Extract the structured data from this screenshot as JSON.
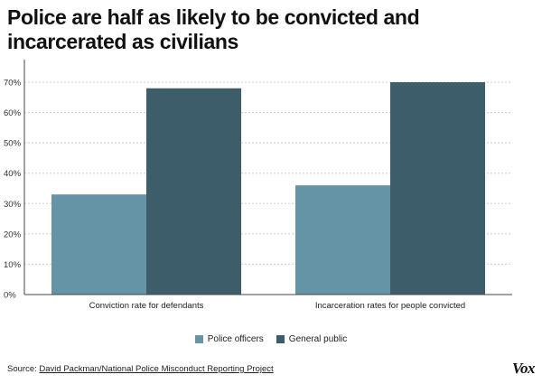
{
  "title": "Police are half as likely to be convicted and incarcerated as civilians",
  "source": {
    "label": "Source:",
    "link_text": "David Packman/National Police Misconduct Reporting Project"
  },
  "logo_text": "Vox",
  "chart_data": {
    "type": "bar",
    "categories": [
      "Conviction rate for defendants",
      "Incarceration rates for people convicted"
    ],
    "series": [
      {
        "name": "Police officers",
        "color": "#6594a6",
        "values": [
          33,
          36
        ]
      },
      {
        "name": "General public",
        "color": "#3e5d6b",
        "values": [
          68,
          70
        ]
      }
    ],
    "yticks": [
      "0%",
      "10%",
      "20%",
      "30%",
      "40%",
      "50%",
      "60%",
      "70%"
    ],
    "ylim": [
      0,
      70
    ],
    "grid": true,
    "legend_position": "bottom"
  }
}
